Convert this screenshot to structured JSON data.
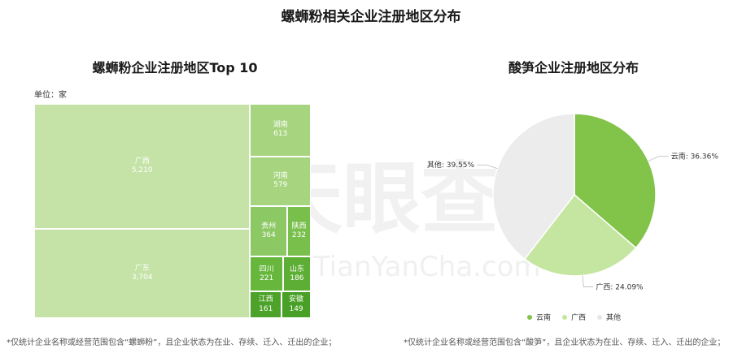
{
  "page_title": "螺蛳粉相关企业注册地区分布",
  "watermark": {
    "logo_text": "天眼查",
    "url_text": "TianYanCha.com"
  },
  "chart_data": [
    {
      "type": "treemap",
      "title": "螺蛳粉企业注册地区Top 10",
      "unit_label": "单位：家",
      "categories": [
        "广西",
        "广东",
        "湖南",
        "河南",
        "贵州",
        "陕西",
        "四川",
        "山东",
        "江西",
        "安徽"
      ],
      "values": [
        5210,
        3704,
        613,
        579,
        364,
        232,
        221,
        186,
        161,
        149
      ],
      "value_labels": [
        "5,210",
        "3,704",
        "613",
        "579",
        "364",
        "232",
        "221",
        "186",
        "161",
        "149"
      ],
      "colors": [
        "#c5e3a6",
        "#c5e3a6",
        "#a7d57f",
        "#a7d57f",
        "#8cc864",
        "#79bf4c",
        "#66b73b",
        "#5cae34",
        "#4da22a",
        "#48a027"
      ]
    },
    {
      "type": "pie",
      "title": "酸笋企业注册地区分布",
      "categories": [
        "云南",
        "广西",
        "其他"
      ],
      "values": [
        36.36,
        24.09,
        39.55
      ],
      "value_labels": [
        "云南: 36.36%",
        "广西: 24.09%",
        "其他: 39.55%"
      ],
      "colors": [
        "#82c34a",
        "#c5e6a0",
        "#ececec"
      ],
      "legend": [
        "云南",
        "广西",
        "其他"
      ],
      "legend_position": "bottom"
    }
  ],
  "footnotes": {
    "left": "*仅统计企业名称或经营范围包含“螺蛳粉”，且企业状态为在业、存续、迁入、迁出的企业；",
    "right": "*仅统计企业名称或经营范围包含“酸笋”，且企业状态为在业、存续、迁入、迁出的企业；"
  }
}
